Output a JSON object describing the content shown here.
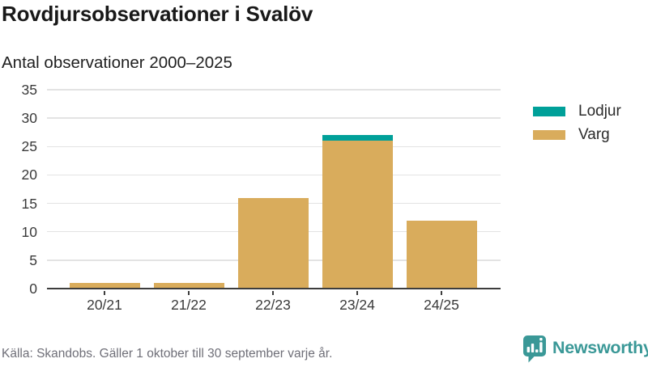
{
  "title": "Rovdjursobservationer i Svalöv",
  "subtitle": "Antal observationer 2000–2025",
  "footer": {
    "source_note": "Källa: Skandobs. Gäller 1 oktober till 30 september varje år."
  },
  "branding": {
    "name": "Newsworthy",
    "icon": "newsworthy-chart-bubble-icon",
    "color": "#3a9897"
  },
  "colors": {
    "lodjur": "#00a099",
    "varg": "#d9ac5c",
    "grid": "#e3e3e3",
    "axis": "#3d3d3d",
    "axis_text": "#3a3a3a",
    "footer_text": "#6f6f78"
  },
  "legend": {
    "items": [
      {
        "label": "Lodjur",
        "color": "#00a099"
      },
      {
        "label": "Varg",
        "color": "#d9ac5c"
      }
    ]
  },
  "chart_data": {
    "type": "bar",
    "stacked": true,
    "title": "Rovdjursobservationer i Svalöv",
    "subtitle": "Antal observationer 2000–2025",
    "categories": [
      "20/21",
      "21/22",
      "22/23",
      "23/24",
      "24/25"
    ],
    "series": [
      {
        "name": "Lodjur",
        "color": "#00a099",
        "values": [
          0,
          0,
          0,
          1,
          0
        ]
      },
      {
        "name": "Varg",
        "color": "#d9ac5c",
        "values": [
          1,
          1,
          16,
          26,
          12
        ]
      }
    ],
    "totals": [
      1,
      1,
      16,
      27,
      12
    ],
    "xlabel": "",
    "ylabel": "",
    "ylim": [
      0,
      35
    ],
    "yticks": [
      0,
      5,
      10,
      15,
      20,
      25,
      30,
      35
    ],
    "grid": true,
    "legend_position": "right"
  }
}
